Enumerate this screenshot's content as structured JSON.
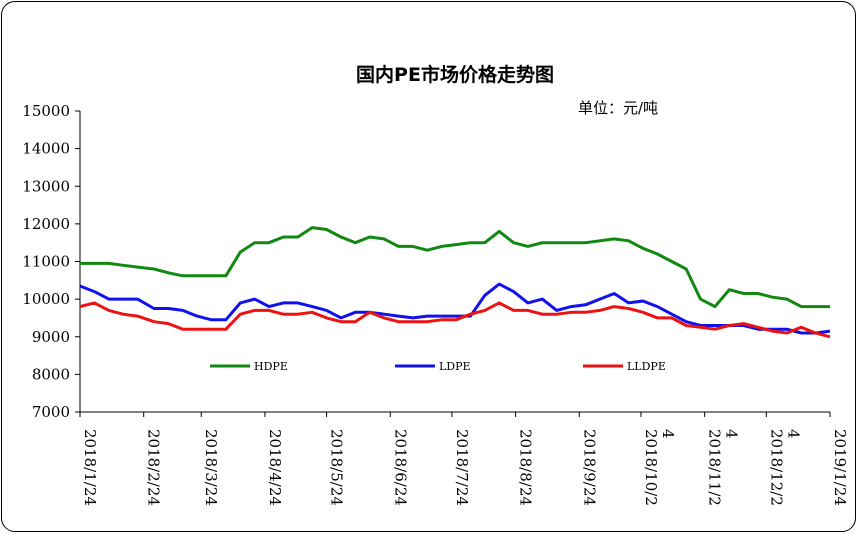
{
  "chart_data": {
    "type": "line",
    "title": "国内PE市场价格走势图",
    "unit_label": "单位：元/吨",
    "ylim": [
      7000,
      15000
    ],
    "yticks": [
      7000,
      8000,
      9000,
      10000,
      11000,
      12000,
      13000,
      14000,
      15000
    ],
    "xlim": [
      "2018/1/24",
      "2019/1/24"
    ],
    "xticks": [
      {
        "date": "2018/1/24",
        "lines": [
          "2018/1/24"
        ]
      },
      {
        "date": "2018/2/24",
        "lines": [
          "2018/2/24"
        ]
      },
      {
        "date": "2018/3/24",
        "lines": [
          "2018/3/24"
        ]
      },
      {
        "date": "2018/4/24",
        "lines": [
          "2018/4/24"
        ]
      },
      {
        "date": "2018/5/24",
        "lines": [
          "2018/5/24"
        ]
      },
      {
        "date": "2018/6/24",
        "lines": [
          "2018/6/24"
        ]
      },
      {
        "date": "2018/7/24",
        "lines": [
          "2018/7/24"
        ]
      },
      {
        "date": "2018/8/24",
        "lines": [
          "2018/8/24"
        ]
      },
      {
        "date": "2018/9/24",
        "lines": [
          "2018/9/24"
        ]
      },
      {
        "date": "2018/10/24",
        "lines": [
          "2018/10/2",
          "4"
        ]
      },
      {
        "date": "2018/11/24",
        "lines": [
          "2018/11/2",
          "4"
        ]
      },
      {
        "date": "2018/12/24",
        "lines": [
          "2018/12/2",
          "4"
        ]
      },
      {
        "date": "2019/1/24",
        "lines": [
          "2019/1/24"
        ]
      }
    ],
    "grid": false,
    "legend_position": "bottom",
    "series": [
      {
        "name": "HDPE",
        "color": "#118811",
        "points": [
          [
            "2018/1/24",
            10950
          ],
          [
            "2018/1/31",
            10950
          ],
          [
            "2018/2/7",
            10950
          ],
          [
            "2018/2/14",
            10900
          ],
          [
            "2018/2/21",
            10850
          ],
          [
            "2018/3/1",
            10800
          ],
          [
            "2018/3/8",
            10700
          ],
          [
            "2018/3/15",
            10620
          ],
          [
            "2018/3/22",
            10620
          ],
          [
            "2018/3/29",
            10620
          ],
          [
            "2018/4/5",
            10620
          ],
          [
            "2018/4/12",
            11250
          ],
          [
            "2018/4/19",
            11500
          ],
          [
            "2018/4/26",
            11500
          ],
          [
            "2018/5/3",
            11650
          ],
          [
            "2018/5/10",
            11650
          ],
          [
            "2018/5/17",
            11900
          ],
          [
            "2018/5/24",
            11850
          ],
          [
            "2018/5/31",
            11650
          ],
          [
            "2018/6/7",
            11500
          ],
          [
            "2018/6/14",
            11650
          ],
          [
            "2018/6/21",
            11600
          ],
          [
            "2018/6/28",
            11400
          ],
          [
            "2018/7/5",
            11400
          ],
          [
            "2018/7/12",
            11300
          ],
          [
            "2018/7/19",
            11400
          ],
          [
            "2018/7/26",
            11450
          ],
          [
            "2018/8/2",
            11500
          ],
          [
            "2018/8/9",
            11500
          ],
          [
            "2018/8/16",
            11800
          ],
          [
            "2018/8/23",
            11500
          ],
          [
            "2018/8/30",
            11400
          ],
          [
            "2018/9/6",
            11500
          ],
          [
            "2018/9/13",
            11500
          ],
          [
            "2018/9/20",
            11500
          ],
          [
            "2018/9/27",
            11500
          ],
          [
            "2018/10/4",
            11550
          ],
          [
            "2018/10/11",
            11600
          ],
          [
            "2018/10/18",
            11550
          ],
          [
            "2018/10/25",
            11350
          ],
          [
            "2018/11/1",
            11200
          ],
          [
            "2018/11/8",
            11000
          ],
          [
            "2018/11/15",
            10800
          ],
          [
            "2018/11/22",
            10000
          ],
          [
            "2018/11/29",
            9800
          ],
          [
            "2018/12/6",
            10250
          ],
          [
            "2018/12/13",
            10150
          ],
          [
            "2018/12/20",
            10150
          ],
          [
            "2018/12/27",
            10050
          ],
          [
            "2019/1/3",
            10000
          ],
          [
            "2019/1/10",
            9800
          ],
          [
            "2019/1/17",
            9800
          ],
          [
            "2019/1/24",
            9800
          ]
        ]
      },
      {
        "name": "LDPE",
        "color": "#1111ee",
        "points": [
          [
            "2018/1/24",
            10350
          ],
          [
            "2018/1/31",
            10200
          ],
          [
            "2018/2/7",
            10000
          ],
          [
            "2018/2/14",
            10000
          ],
          [
            "2018/2/21",
            10000
          ],
          [
            "2018/3/1",
            9750
          ],
          [
            "2018/3/8",
            9750
          ],
          [
            "2018/3/15",
            9700
          ],
          [
            "2018/3/22",
            9550
          ],
          [
            "2018/3/29",
            9450
          ],
          [
            "2018/4/5",
            9450
          ],
          [
            "2018/4/12",
            9900
          ],
          [
            "2018/4/19",
            10000
          ],
          [
            "2018/4/26",
            9800
          ],
          [
            "2018/5/3",
            9900
          ],
          [
            "2018/5/10",
            9900
          ],
          [
            "2018/5/17",
            9800
          ],
          [
            "2018/5/24",
            9700
          ],
          [
            "2018/5/31",
            9500
          ],
          [
            "2018/6/7",
            9650
          ],
          [
            "2018/6/14",
            9650
          ],
          [
            "2018/6/21",
            9600
          ],
          [
            "2018/6/28",
            9550
          ],
          [
            "2018/7/5",
            9500
          ],
          [
            "2018/7/12",
            9550
          ],
          [
            "2018/7/19",
            9550
          ],
          [
            "2018/7/26",
            9550
          ],
          [
            "2018/8/2",
            9550
          ],
          [
            "2018/8/9",
            10100
          ],
          [
            "2018/8/16",
            10400
          ],
          [
            "2018/8/23",
            10200
          ],
          [
            "2018/8/30",
            9900
          ],
          [
            "2018/9/6",
            10000
          ],
          [
            "2018/9/13",
            9700
          ],
          [
            "2018/9/20",
            9800
          ],
          [
            "2018/9/27",
            9850
          ],
          [
            "2018/10/4",
            10000
          ],
          [
            "2018/10/11",
            10150
          ],
          [
            "2018/10/18",
            9900
          ],
          [
            "2018/10/25",
            9950
          ],
          [
            "2018/11/1",
            9800
          ],
          [
            "2018/11/8",
            9600
          ],
          [
            "2018/11/15",
            9400
          ],
          [
            "2018/11/22",
            9300
          ],
          [
            "2018/11/29",
            9300
          ],
          [
            "2018/12/6",
            9300
          ],
          [
            "2018/12/13",
            9300
          ],
          [
            "2018/12/20",
            9200
          ],
          [
            "2018/12/27",
            9200
          ],
          [
            "2019/1/3",
            9200
          ],
          [
            "2019/1/10",
            9100
          ],
          [
            "2019/1/17",
            9100
          ],
          [
            "2019/1/24",
            9150
          ]
        ]
      },
      {
        "name": "LLDPE",
        "color": "#ee1111",
        "points": [
          [
            "2018/1/24",
            9800
          ],
          [
            "2018/1/31",
            9900
          ],
          [
            "2018/2/7",
            9700
          ],
          [
            "2018/2/14",
            9600
          ],
          [
            "2018/2/21",
            9550
          ],
          [
            "2018/3/1",
            9400
          ],
          [
            "2018/3/8",
            9350
          ],
          [
            "2018/3/15",
            9200
          ],
          [
            "2018/3/22",
            9200
          ],
          [
            "2018/3/29",
            9200
          ],
          [
            "2018/4/5",
            9200
          ],
          [
            "2018/4/12",
            9600
          ],
          [
            "2018/4/19",
            9700
          ],
          [
            "2018/4/26",
            9700
          ],
          [
            "2018/5/3",
            9600
          ],
          [
            "2018/5/10",
            9600
          ],
          [
            "2018/5/17",
            9650
          ],
          [
            "2018/5/24",
            9500
          ],
          [
            "2018/5/31",
            9400
          ],
          [
            "2018/6/7",
            9400
          ],
          [
            "2018/6/14",
            9650
          ],
          [
            "2018/6/21",
            9500
          ],
          [
            "2018/6/28",
            9400
          ],
          [
            "2018/7/5",
            9400
          ],
          [
            "2018/7/12",
            9400
          ],
          [
            "2018/7/19",
            9450
          ],
          [
            "2018/7/26",
            9450
          ],
          [
            "2018/8/2",
            9600
          ],
          [
            "2018/8/9",
            9700
          ],
          [
            "2018/8/16",
            9900
          ],
          [
            "2018/8/23",
            9700
          ],
          [
            "2018/8/30",
            9700
          ],
          [
            "2018/9/6",
            9600
          ],
          [
            "2018/9/13",
            9600
          ],
          [
            "2018/9/20",
            9650
          ],
          [
            "2018/9/27",
            9650
          ],
          [
            "2018/10/4",
            9700
          ],
          [
            "2018/10/11",
            9800
          ],
          [
            "2018/10/18",
            9750
          ],
          [
            "2018/10/25",
            9650
          ],
          [
            "2018/11/1",
            9500
          ],
          [
            "2018/11/8",
            9500
          ],
          [
            "2018/11/15",
            9300
          ],
          [
            "2018/11/22",
            9250
          ],
          [
            "2018/11/29",
            9200
          ],
          [
            "2018/12/6",
            9300
          ],
          [
            "2018/12/13",
            9350
          ],
          [
            "2018/12/20",
            9250
          ],
          [
            "2018/12/27",
            9150
          ],
          [
            "2019/1/3",
            9100
          ],
          [
            "2019/1/10",
            9250
          ],
          [
            "2019/1/17",
            9100
          ],
          [
            "2019/1/24",
            9000
          ]
        ]
      }
    ]
  }
}
